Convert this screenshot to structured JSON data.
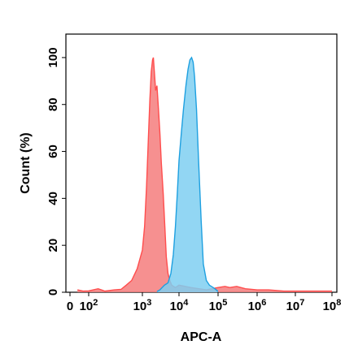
{
  "chart_data": {
    "type": "area",
    "title": "",
    "xlabel": "APC-A",
    "ylabel": "Count (%)",
    "x_scale": "log",
    "xlim": [
      0,
      100000000
    ],
    "ylim": [
      0,
      110
    ],
    "grid": false,
    "legend": "none",
    "x_ticks": [
      {
        "value": 0,
        "label": "0"
      },
      {
        "value": 100,
        "base": "10",
        "exp": "2"
      },
      {
        "value": 1000,
        "base": "10",
        "exp": "3"
      },
      {
        "value": 10000,
        "base": "10",
        "exp": "4"
      },
      {
        "value": 100000,
        "base": "10",
        "exp": "5"
      },
      {
        "value": 1000000,
        "base": "10",
        "exp": "6"
      },
      {
        "value": 10000000,
        "base": "10",
        "exp": "7"
      },
      {
        "value": 100000000,
        "base": "10",
        "exp": "8"
      }
    ],
    "y_ticks": [
      0,
      20,
      40,
      60,
      80,
      100
    ],
    "series": [
      {
        "color": "#ff4d4d",
        "fill": "#f47c7c",
        "points": [
          [
            40,
            1
          ],
          [
            70,
            0.5
          ],
          [
            100,
            0.6
          ],
          [
            150,
            1.5
          ],
          [
            200,
            0.5
          ],
          [
            300,
            1
          ],
          [
            400,
            1.2
          ],
          [
            500,
            3
          ],
          [
            630,
            5
          ],
          [
            800,
            10
          ],
          [
            1000,
            18
          ],
          [
            1150,
            28
          ],
          [
            1300,
            45
          ],
          [
            1450,
            65
          ],
          [
            1600,
            82
          ],
          [
            1750,
            94
          ],
          [
            1900,
            99
          ],
          [
            2000,
            100
          ],
          [
            2100,
            95
          ],
          [
            2300,
            86
          ],
          [
            2500,
            88
          ],
          [
            2700,
            80
          ],
          [
            3000,
            68
          ],
          [
            3300,
            55
          ],
          [
            3700,
            42
          ],
          [
            4100,
            28
          ],
          [
            4500,
            15
          ],
          [
            5000,
            8
          ],
          [
            5600,
            5
          ],
          [
            6300,
            3
          ],
          [
            8000,
            2
          ],
          [
            10000,
            3
          ],
          [
            20000,
            2
          ],
          [
            50000,
            1
          ],
          [
            100000,
            2
          ],
          [
            150000,
            2.5
          ],
          [
            200000,
            2
          ],
          [
            300000,
            2.5
          ],
          [
            500000,
            1.5
          ],
          [
            1000000,
            1
          ],
          [
            2000000,
            1
          ],
          [
            5000000,
            0.5
          ],
          [
            100000000,
            0.5
          ]
        ]
      },
      {
        "color": "#1ea0e0",
        "fill": "#7fcff1",
        "points": [
          [
            2500,
            0.3
          ],
          [
            3000,
            1
          ],
          [
            4000,
            3
          ],
          [
            5000,
            4
          ],
          [
            6000,
            8
          ],
          [
            7000,
            16
          ],
          [
            8000,
            28
          ],
          [
            9000,
            42
          ],
          [
            10000,
            56
          ],
          [
            11500,
            68
          ],
          [
            13000,
            78
          ],
          [
            15000,
            88
          ],
          [
            17000,
            95
          ],
          [
            19000,
            99
          ],
          [
            21000,
            100
          ],
          [
            23000,
            98
          ],
          [
            25000,
            92
          ],
          [
            28000,
            78
          ],
          [
            32000,
            55
          ],
          [
            37000,
            30
          ],
          [
            42000,
            12
          ],
          [
            50000,
            5
          ],
          [
            60000,
            3
          ],
          [
            75000,
            2
          ],
          [
            90000,
            1
          ],
          [
            100000,
            0.3
          ]
        ]
      }
    ]
  }
}
